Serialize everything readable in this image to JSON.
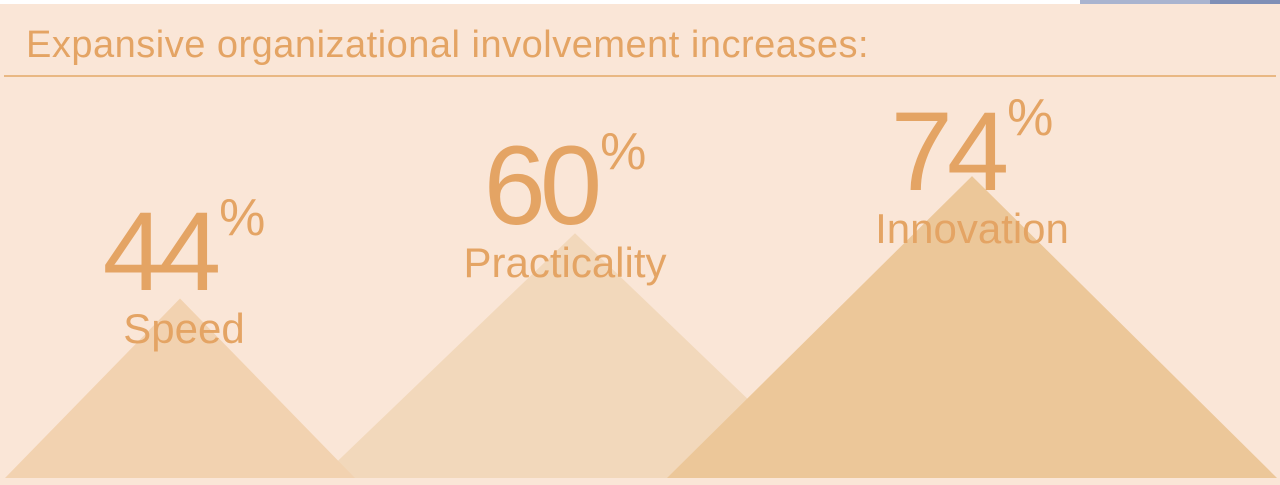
{
  "title": "Expansive organizational involvement increases:",
  "colors": {
    "background": "#fae6d7",
    "text": "#e4a464",
    "rule": "#e9b883",
    "pyramid_small": "#f2d2b0",
    "pyramid_mid": "#f2d8bb",
    "pyramid_large": "#ecc799"
  },
  "chart_data": {
    "type": "bar",
    "title": "Expansive organizational involvement increases:",
    "categories": [
      "Speed",
      "Practicality",
      "Innovation"
    ],
    "values": [
      44,
      60,
      74
    ],
    "value_suffix": "%",
    "ylim": [
      0,
      100
    ]
  },
  "stats": [
    {
      "value": "44",
      "suffix": "%",
      "label": "Speed"
    },
    {
      "value": "60",
      "suffix": "%",
      "label": "Practicality"
    },
    {
      "value": "74",
      "suffix": "%",
      "label": "Innovation"
    }
  ]
}
